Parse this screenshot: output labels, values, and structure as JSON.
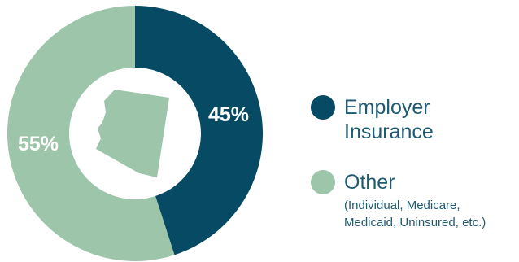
{
  "chart_data": {
    "type": "pie",
    "donut": true,
    "categories": [
      "Employer Insurance",
      "Other"
    ],
    "values": [
      45,
      55
    ],
    "slice_labels": [
      "45%",
      "55%"
    ],
    "colors": [
      "#064a63",
      "#9cc5aa"
    ],
    "legend_placement": "right",
    "center_icon": "arizona-state-icon",
    "center_icon_color": "#9cc5aa"
  },
  "legend": {
    "items": [
      {
        "name": "Employer\nInsurance",
        "note": "",
        "color": "#064a63"
      },
      {
        "name": "Other",
        "note": "(Individual, Medicare,\nMedicaid, Uninsured, etc.)",
        "color": "#9cc5aa"
      }
    ]
  }
}
